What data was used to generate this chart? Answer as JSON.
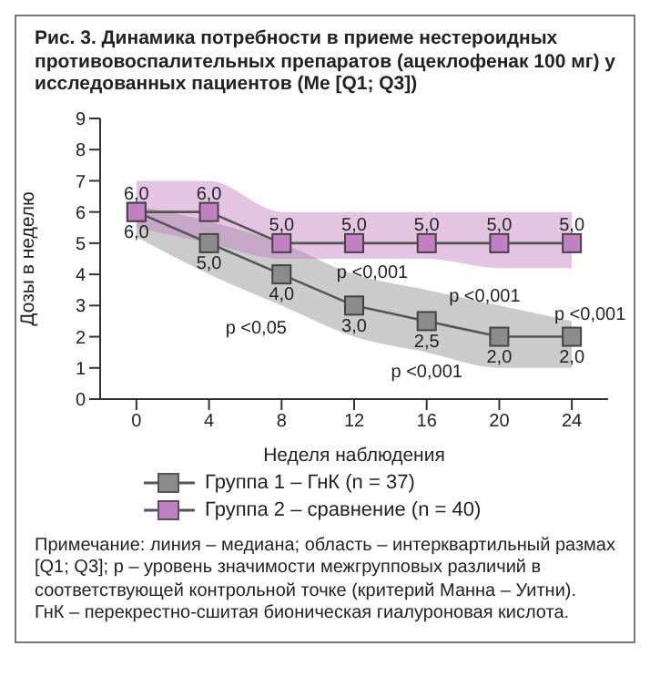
{
  "chart_data": {
    "type": "line",
    "title": "Рис. 3. Динамика потребности в приеме нестероидных противовоспалительных препаратов (ацеклофенак 100 мг) у исследованных пациентов (Ме [Q1; Q3])",
    "xlabel": "Неделя наблюдения",
    "ylabel": "Дозы в неделю",
    "x": [
      0,
      4,
      8,
      12,
      16,
      20,
      24
    ],
    "series": [
      {
        "name": "Группа 1 – ГнК (n = 37)",
        "color": "#8c8c8c",
        "values": [
          6,
          5,
          4,
          3,
          2.5,
          2,
          2
        ],
        "lower": [
          5.2,
          4,
          3,
          2,
          1.5,
          1,
          1
        ],
        "upper": [
          6.2,
          5.7,
          5,
          4,
          3.5,
          3,
          2.5
        ],
        "value_labels": [
          "6,0",
          "5,0",
          "4,0",
          "3,0",
          "2,5",
          "2,0",
          "2,0"
        ]
      },
      {
        "name": "Группа 2 – сравнение (n = 40)",
        "color": "#c27fc2",
        "values": [
          6,
          6,
          5,
          5,
          5,
          5,
          5
        ],
        "lower": [
          5.5,
          5,
          4.5,
          4.5,
          4.5,
          4.2,
          4.2
        ],
        "upper": [
          7,
          7,
          6,
          6,
          6,
          6,
          6
        ],
        "value_labels": [
          "6,0",
          "6,0",
          "5,0",
          "5,0",
          "5,0",
          "5,0",
          "5,0"
        ]
      }
    ],
    "xlim": [
      -2,
      26
    ],
    "xticks": [
      0,
      4,
      8,
      12,
      16,
      20,
      24
    ],
    "ylim": [
      0,
      9
    ],
    "yticks": [
      0,
      1,
      2,
      3,
      4,
      5,
      6,
      7,
      8,
      9
    ],
    "grid": false,
    "legend": "bottom",
    "marker": "square",
    "line_style": "solid",
    "annotations": [
      {
        "text": "p <0,05",
        "x": 8,
        "y": 4
      },
      {
        "text": "p <0,001",
        "x": 12,
        "y": 3
      },
      {
        "text": "p <0,001",
        "x": 16,
        "y": 2.5
      },
      {
        "text": "p <0,001",
        "x": 20,
        "y": 2
      },
      {
        "text": "p <0,001",
        "x": 24,
        "y": 2
      },
      "Примечание: линия – медиана; область – интерквартильный размах [Q1; Q3]; p – уровень значимости межгрупповых различий в соответствующей контрольной точке (критерий Манна – Уитни).",
      "ГнК – перекрестно-сшитая бионическая гиалуроновая кислота."
    ]
  }
}
